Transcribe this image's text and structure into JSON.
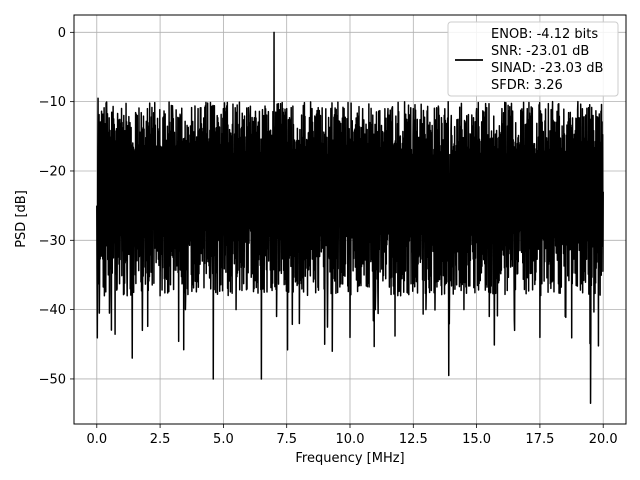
{
  "chart_data": {
    "type": "line",
    "xlabel": "Frequency [MHz]",
    "ylabel": "PSD [dB]",
    "xlim": [
      -0.9,
      20.9
    ],
    "ylim": [
      -56.5,
      2.5
    ],
    "xticks": [
      0.0,
      2.5,
      5.0,
      7.5,
      10.0,
      12.5,
      15.0,
      17.5,
      20.0
    ],
    "xtick_labels": [
      "0.0",
      "2.5",
      "5.0",
      "7.5",
      "10.0",
      "12.5",
      "15.0",
      "17.5",
      "20.0"
    ],
    "yticks": [
      0,
      -10,
      -20,
      -30,
      -40,
      -50
    ],
    "ytick_labels": [
      "0",
      "−10",
      "−20",
      "−30",
      "−40",
      "−50"
    ],
    "grid": true,
    "legend_position": "top-right",
    "legend_lines": [
      "ENOB: -4.12 bits",
      "SNR: -23.01 dB",
      "SINAD: -23.03 dB",
      "SFDR: 3.26"
    ],
    "line_color": "#000000",
    "series": [
      {
        "x": [
          0.0,
          0.05,
          0.1,
          0.2,
          0.3,
          0.4,
          0.5,
          0.6,
          0.8,
          1.0,
          1.2,
          1.4,
          1.6,
          1.8,
          2.0,
          2.5,
          3.0,
          3.5,
          4.0,
          4.5,
          4.6,
          5.0,
          5.5,
          6.0,
          6.5,
          6.6,
          7.0,
          7.1,
          7.5,
          8.0,
          8.5,
          9.0,
          9.3,
          9.5,
          10.0,
          10.5,
          11.0,
          11.5,
          12.0,
          12.5,
          13.0,
          13.5,
          13.9,
          14.0,
          14.5,
          15.0,
          15.5,
          16.0,
          16.5,
          17.0,
          17.5,
          18.0,
          18.5,
          19.0,
          19.5,
          19.6,
          20.0
        ],
        "y": [
          -25,
          -9.5,
          -40.5,
          -14,
          -38,
          -15,
          -40.5,
          -12,
          -37,
          -13,
          -38,
          -47,
          -12,
          -43,
          -11,
          -38,
          -12,
          -40,
          -11,
          -37,
          -50,
          -11,
          -40,
          -12,
          -50,
          -13,
          0,
          -41,
          -11,
          -42,
          -11,
          -45,
          -46,
          -12,
          -44,
          -11,
          -40,
          -11,
          -38,
          -11,
          -40,
          -11,
          -49.5,
          -12,
          -40,
          -11,
          -41,
          -11,
          -43,
          -11,
          -44,
          -10,
          -41,
          -10,
          -53.5,
          -12,
          -23
        ]
      }
    ]
  }
}
